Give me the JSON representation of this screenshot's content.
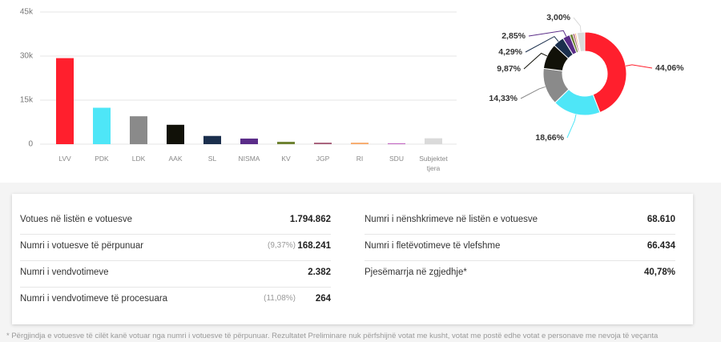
{
  "chart_data": [
    {
      "type": "bar",
      "categories": [
        "LVV",
        "PDK",
        "LDK",
        "AAK",
        "SL",
        "NISMA",
        "KV",
        "JGP",
        "RI",
        "SDU",
        "Subjektet tjera"
      ],
      "values": [
        29300,
        12400,
        9500,
        6600,
        2800,
        1900,
        800,
        500,
        500,
        300,
        2000
      ],
      "colors": [
        "#ff1f2d",
        "#4ee6f7",
        "#8a8a8a",
        "#111108",
        "#1b2f4d",
        "#5a2c88",
        "#6d8130",
        "#a35874",
        "#f7a766",
        "#c266c2",
        "#dadada"
      ],
      "ylim": [
        0,
        45000
      ],
      "yticks": [
        0,
        {
          "value": 15000,
          "label": "15k"
        },
        {
          "value": 30000,
          "label": "30k"
        },
        {
          "value": 45000,
          "label": "45k"
        }
      ],
      "grid": true
    },
    {
      "type": "pie",
      "values": [
        44.06,
        18.66,
        14.33,
        9.87,
        4.29,
        2.85,
        1.2,
        0.8,
        0.6,
        0.34,
        3.0
      ],
      "value_labels": [
        "44,06%",
        "18,66%",
        "14,33%",
        "9,87%",
        "4,29%",
        "2,85%",
        null,
        null,
        null,
        null,
        "3,00%"
      ],
      "colors": [
        "#ff1f2d",
        "#4ee6f7",
        "#8a8a8a",
        "#111108",
        "#1b2f4d",
        "#5a2c88",
        "#6d8130",
        "#a35874",
        "#f7a766",
        "#c266c2",
        "#dadada"
      ],
      "donut": true
    }
  ],
  "stats": {
    "left": [
      {
        "label": "Votues në listën e votuesve",
        "value": "1.794.862"
      },
      {
        "label": "Numri i votuesve të përpunuar",
        "note": "(9,37%)",
        "value": "168.241"
      },
      {
        "label": "Numri i vendvotimeve",
        "value": "2.382"
      },
      {
        "label": "Numri i vendvotimeve të procesuara",
        "note": "(11,08%)",
        "value": "264"
      }
    ],
    "right": [
      {
        "label": "Numri i nënshkrimeve në listën e votuesve",
        "value": "68.610"
      },
      {
        "label": "Numri i fletëvotimeve të vlefshme",
        "value": "66.434"
      },
      {
        "label": "Pjesëmarrja në zgjedhje*",
        "value": "40,78%"
      }
    ]
  },
  "footnote": "* Përgjindja e votuesve të cilët kanë votuar nga numri i votuesve të përpunuar. Rezultatet Preliminare nuk përfshijnë votat me kusht, votat me postë edhe votat e personave me nevoja të veçanta"
}
